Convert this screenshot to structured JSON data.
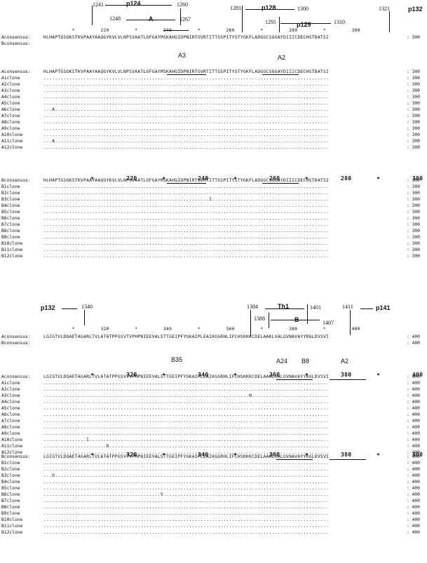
{
  "block1": {
    "peptides": {
      "p124": "p124",
      "p128": "p128",
      "p129": "p129",
      "p132": "p132",
      "epitope": "A",
      "n1241": "1241",
      "n1260": "1260",
      "n1248": "1248",
      "n1267": "1267",
      "n1281": "1281",
      "n1300": "1300",
      "n1291": "1291",
      "n1310": "1310",
      "n1321": "1321"
    },
    "axis_top": "          *         220         *         240         *         260         *         280         *         300",
    "axis_stars": "          *                   *                   *                   *                   *",
    "axis_bold": "                    220                 240                 260                 280                 300",
    "consensus": [
      {
        "label": "Aconsensus:",
        "seq": "HLHAPTGSGKSTKVPAAYAAQGYKVLVLNPSVAATLGFGAYMSKAHGIDPNIRTGVRTITTGSPITYSTYGKFLADGGCSGGAYDIIICDECHSTDATSI",
        "end": ": 300"
      },
      {
        "label": "Bconsensus:",
        "seq": "",
        "end": ""
      }
    ],
    "hla": {
      "a3": "A3",
      "a2": "A2"
    },
    "groupA": [
      {
        "label": "Aconsensus:",
        "seq": "HLHAPTGSGKSTKVPAAYAAQGYKVLVLNPSVAATLGFGAYMSKAHGIDPNIRTGVRTITTGSPITYSTYGKFLADGGCSGGAYDIIICDECHSTDATSI",
        "end": ": 300"
      },
      {
        "label": "A1clone",
        "seq": "....................................................................................................",
        "end": ": 300"
      },
      {
        "label": "A2clone",
        "seq": "....................................................................................................",
        "end": ": 300"
      },
      {
        "label": "A3clone",
        "seq": "....................................................................................................",
        "end": ": 300"
      },
      {
        "label": "A4clone",
        "seq": "....................................................................................................",
        "end": ": 300"
      },
      {
        "label": "A5clone",
        "seq": "....................................................................................................",
        "end": ": 300"
      },
      {
        "label": "A6clone",
        "seq": "...A................................................................................................",
        "end": ": 300"
      },
      {
        "label": "A7clone",
        "seq": "....................................................................................................",
        "end": ": 300"
      },
      {
        "label": "A8clone",
        "seq": "....................................................................................................",
        "end": ": 300"
      },
      {
        "label": "A9clone",
        "seq": "....................................................................................................",
        "end": ": 300"
      },
      {
        "label": "A10clone",
        "seq": "....................................................................................................",
        "end": ": 300"
      },
      {
        "label": "A11clone",
        "seq": "...A................................................................................................",
        "end": ": 300"
      },
      {
        "label": "A12clone",
        "seq": "....................................................................................................",
        "end": ": 300"
      }
    ],
    "groupB": [
      {
        "label": "Bconsensus:",
        "seq": "HLHAPTGSGKSTKVPAAYAAQGYKVLVLNPSVAATLGFGAYMSKAHGIDPNIRTGVRTITTGSPITYSTYGKFLADGGCSGGAYDIIICDECHSTDATSI",
        "end": ": 300"
      },
      {
        "label": "B1clone",
        "seq": "....................................................................................................",
        "end": ": 300"
      },
      {
        "label": "B2clone",
        "seq": "....................................................................................................",
        "end": ": 300"
      },
      {
        "label": "B3clone",
        "seq": "..........................................................I.........................................",
        "end": ": 300"
      },
      {
        "label": "B4clone",
        "seq": "....................................................................................................",
        "end": ": 300"
      },
      {
        "label": "B5clone",
        "seq": "....................................................................................................",
        "end": ": 300"
      },
      {
        "label": "B6clone",
        "seq": "....................................................................................................",
        "end": ": 300"
      },
      {
        "label": "B7clone",
        "seq": "....................................................................................................",
        "end": ": 300"
      },
      {
        "label": "B8clone",
        "seq": "....................................................................................................",
        "end": ": 300"
      },
      {
        "label": "B9clone",
        "seq": "....................................................................................................",
        "end": ": 300"
      },
      {
        "label": "B10clone",
        "seq": "....................................................................................................",
        "end": ": 300"
      },
      {
        "label": "B11clone",
        "seq": "....................................................................................................",
        "end": ": 300"
      },
      {
        "label": "B12clone",
        "seq": "....................................................................................................",
        "end": ": 300"
      }
    ]
  },
  "block2": {
    "peptides": {
      "p132": "p132",
      "th1": "Th1",
      "p141": "p141",
      "epitope": "B",
      "n1340": "1340",
      "n1384": "1384",
      "n1401": "1401",
      "n1388": "1388",
      "n1407": "1407",
      "n1411": "1411"
    },
    "axis_top": "          *         320         *         340         *         360         *         380         *         400",
    "axis_stars": "          *                   *                   *                   *                   *",
    "axis_bold": "                    320                 340                 360                 380                 400",
    "consensus": [
      {
        "label": "Aconsensus:",
        "seq": "LGIGTVLDQAETAGARLTVLATATPPGSVTVPHPNIEEVALSTTGEIPFYGKAIPLEAIKGGRHLIFCHSKKKCDELAAKLVALGVNAVAYYRGLDVSVI",
        "end": ": 400"
      },
      {
        "label": "Bconsensus:",
        "seq": "",
        "end": ": 400"
      }
    ],
    "hla": {
      "b35": "B35",
      "a24": "A24",
      "b8": "B8",
      "a2": "A2"
    },
    "groupA": [
      {
        "label": "Aconsensus:",
        "seq": "LGIGTVLDQAETAGARLTVLATATPPGSVTVPHPNIEEVALSTTGEIPFYGKAIPLEAIKGGRHLIFCHSKKKCDELAAKLVALGVNAVAYYRGLDVSVI",
        "end": ": 400"
      },
      {
        "label": "A1clone",
        "seq": "....................................................................................................",
        "end": ": 400"
      },
      {
        "label": "A2clone",
        "seq": "....................................................................................................",
        "end": ": 400"
      },
      {
        "label": "A3clone",
        "seq": "........................................................................N...........................",
        "end": ": 400"
      },
      {
        "label": "A4clone",
        "seq": "....................................................................................................",
        "end": ": 400"
      },
      {
        "label": "A5clone",
        "seq": "....................................................................................................",
        "end": ": 400"
      },
      {
        "label": "A6clone",
        "seq": "....................................................................................................",
        "end": ": 400"
      },
      {
        "label": "A7clone",
        "seq": "....................................................................................................",
        "end": ": 400"
      },
      {
        "label": "A8clone",
        "seq": "....................................................................................................",
        "end": ": 400"
      },
      {
        "label": "A9clone",
        "seq": "....................................................................................................",
        "end": ": 400"
      },
      {
        "label": "A10clone",
        "seq": "...............I....................................................................................",
        "end": ": 400"
      },
      {
        "label": "A11clone",
        "seq": "......................D.............................................................................",
        "end": ": 400"
      },
      {
        "label": "A12clone",
        "seq": "....................................................................................................",
        "end": ": 400"
      }
    ],
    "groupB": [
      {
        "label": "Bconsensus:",
        "seq": "LGIGTVLDQAETAGARLTVLATATPPGSVTVPHPNIEEVALSTTGEIPFYGKAIPLEAIKGGRHLIFCHSKKKCDELAAKLVALGVNAVAYYRGLDVSVI",
        "end": ": 400"
      },
      {
        "label": "B1clone",
        "seq": "....................................................................................................",
        "end": ": 400"
      },
      {
        "label": "B2clone",
        "seq": "....................................................................................................",
        "end": ": 400"
      },
      {
        "label": "B3clone",
        "seq": "...D................................................................................................",
        "end": ": 400"
      },
      {
        "label": "B4clone",
        "seq": "....................................................................................................",
        "end": ": 400"
      },
      {
        "label": "B5clone",
        "seq": "....................................................................................................",
        "end": ": 400"
      },
      {
        "label": "B6clone",
        "seq": ".........................................V..........................................................",
        "end": ": 400"
      },
      {
        "label": "B7clone",
        "seq": "....................................................................................................",
        "end": ": 400"
      },
      {
        "label": "B8clone",
        "seq": "....................................................................................................",
        "end": ": 400"
      },
      {
        "label": "B9clone",
        "seq": "....................................................................................................",
        "end": ": 400"
      },
      {
        "label": "B10clone",
        "seq": "....................................................................................................",
        "end": ": 400"
      },
      {
        "label": "B11clone",
        "seq": "....................................................................................................",
        "end": ": 400"
      },
      {
        "label": "B12clone",
        "seq": "....................................................................................................",
        "end": ": 400"
      }
    ]
  }
}
